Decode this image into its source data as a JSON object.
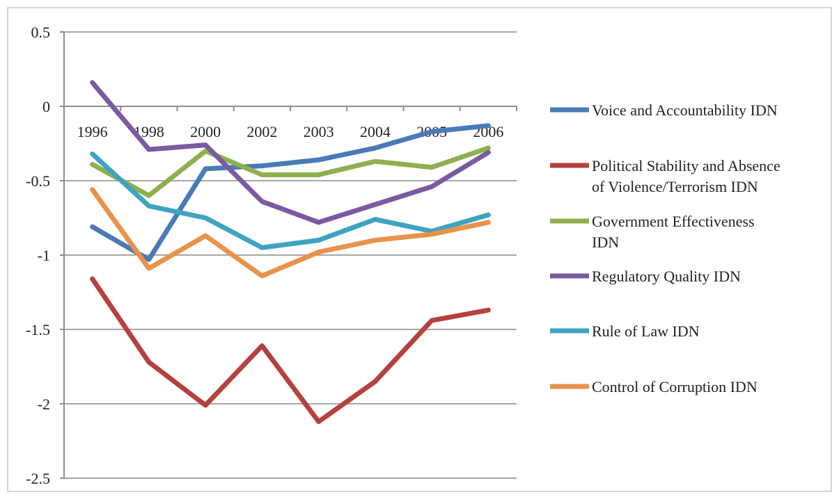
{
  "chart_data": {
    "type": "line",
    "categories": [
      "1996",
      "1998",
      "2000",
      "2002",
      "2003",
      "2004",
      "2005",
      "2006"
    ],
    "ylim": [
      -2.5,
      0.5
    ],
    "yticks": [
      "0.5",
      "0",
      "-0.5",
      "-1",
      "-1.5",
      "-2",
      "-2.5"
    ],
    "ytick_values": [
      0.5,
      0,
      -0.5,
      -1,
      -1.5,
      -2,
      -2.5
    ],
    "grid": true,
    "legend_position": "right",
    "series": [
      {
        "name": "Voice and Accountability IDN",
        "color": "#4a7bb7",
        "values": [
          -0.81,
          -1.03,
          -0.42,
          -0.4,
          -0.36,
          -0.28,
          -0.17,
          -0.13
        ]
      },
      {
        "name": "Political Stability and Absence of Violence/Terrorism IDN",
        "color": "#b5413e",
        "values": [
          -1.16,
          -1.72,
          -2.01,
          -1.61,
          -2.12,
          -1.85,
          -1.44,
          -1.37
        ]
      },
      {
        "name": "Government Effectiveness IDN",
        "color": "#8faf4f",
        "values": [
          -0.39,
          -0.6,
          -0.3,
          -0.46,
          -0.46,
          -0.37,
          -0.41,
          -0.28
        ]
      },
      {
        "name": "Regulatory Quality IDN",
        "color": "#7a5aa0",
        "values": [
          0.16,
          -0.29,
          -0.26,
          -0.64,
          -0.78,
          -0.66,
          -0.54,
          -0.31
        ]
      },
      {
        "name": "Rule of Law IDN",
        "color": "#3ea3c0",
        "values": [
          -0.32,
          -0.67,
          -0.75,
          -0.95,
          -0.9,
          -0.76,
          -0.84,
          -0.73
        ]
      },
      {
        "name": "Control of Corruption IDN",
        "color": "#e8924a",
        "values": [
          -0.56,
          -1.09,
          -0.87,
          -1.14,
          -0.98,
          -0.9,
          -0.86,
          -0.78
        ]
      }
    ],
    "legend_lines": [
      [
        "Voice and Accountability IDN"
      ],
      [
        "Political Stability and Absence",
        "of Violence/Terrorism IDN"
      ],
      [
        "Government Effectiveness",
        "IDN"
      ],
      [
        "Regulatory Quality IDN"
      ],
      [
        "Rule of Law IDN"
      ],
      [
        "Control of Corruption IDN"
      ]
    ]
  }
}
